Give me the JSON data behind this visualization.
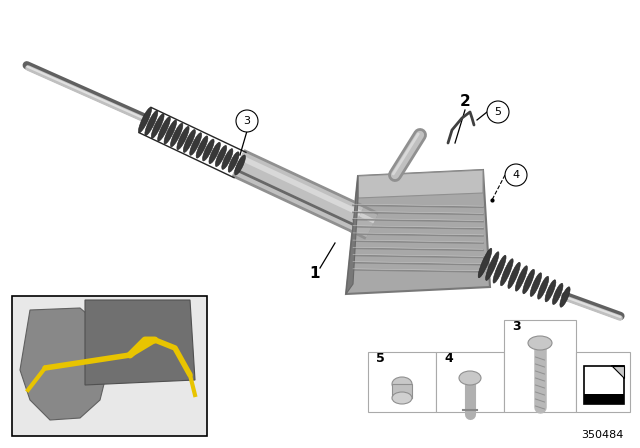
{
  "bg_color": "#ffffff",
  "fig_width": 6.4,
  "fig_height": 4.48,
  "dpi": 100,
  "part_number": "350484",
  "rack_color": "#b0b0b0",
  "rack_dark": "#808080",
  "rack_light": "#d8d8d8",
  "boot_color": "#404040",
  "motor_color": "#a0a0a0",
  "yellow": "#e8c400",
  "inset_border": "#000000"
}
